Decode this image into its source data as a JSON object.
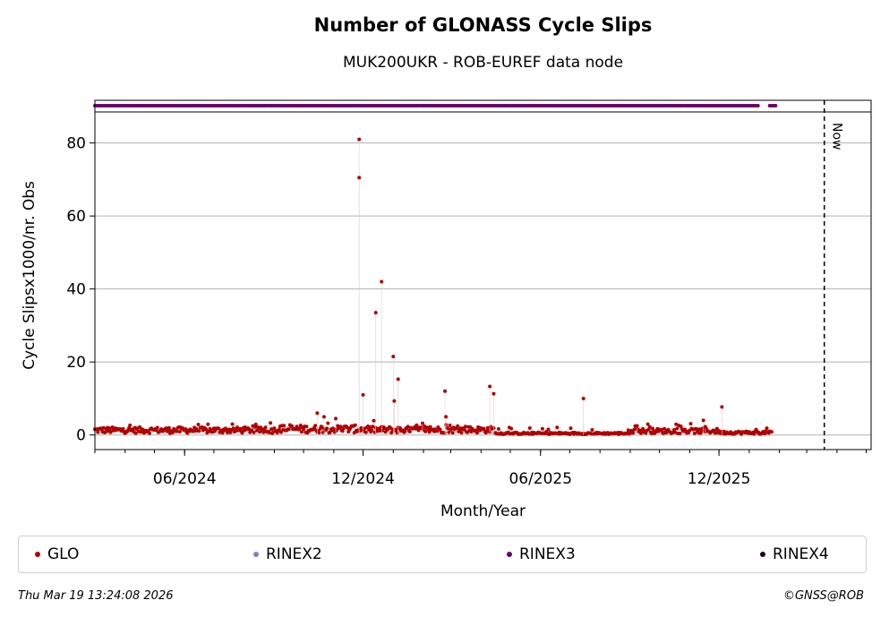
{
  "chart_data": {
    "type": "scatter",
    "title": "Number of GLONASS Cycle Slips",
    "subtitle": "MUK200UKR - ROB-EUREF data node",
    "xlabel": "Month/Year",
    "ylabel": "Cycle Slipsx1000/nr. Obs",
    "x_range": [
      "2024-03-01",
      "2026-05-06"
    ],
    "ylim": [
      -4,
      88.5
    ],
    "x_ticks": [
      {
        "date": "2024-06-01",
        "label": "06/2024"
      },
      {
        "date": "2024-12-01",
        "label": "12/2024"
      },
      {
        "date": "2025-06-01",
        "label": "06/2025"
      },
      {
        "date": "2025-12-01",
        "label": "12/2025"
      }
    ],
    "y_ticks": [
      0,
      20,
      40,
      60,
      80
    ],
    "grid": "horizontal",
    "now_marker": {
      "date": "2026-03-19",
      "label": "Now"
    },
    "legend": {
      "position": "bottom",
      "items": [
        {
          "label": "GLO",
          "color": "#b30000"
        },
        {
          "label": "RINEX2",
          "color": "#8080c0"
        },
        {
          "label": "RINEX3",
          "color": "#660066"
        },
        {
          "label": "RINEX4",
          "color": "#1a001a"
        }
      ]
    },
    "series": [
      {
        "name": "GLO",
        "color": "#b30000",
        "baseline": {
          "start": "2024-03-01",
          "end": "2026-01-24",
          "segments": [
            {
              "end": "2024-09-01",
              "level": 1.2
            },
            {
              "end": "2024-12-01",
              "level": 1.5
            },
            {
              "end": "2025-04-15",
              "level": 1.3
            },
            {
              "end": "2025-09-01",
              "level": 0.4
            },
            {
              "end": "2025-12-01",
              "level": 1.0
            },
            {
              "end": "2026-01-24",
              "level": 0.6
            }
          ]
        },
        "points": [
          {
            "x": "2024-11-27",
            "y": 81
          },
          {
            "x": "2024-11-27",
            "y": 70.5
          },
          {
            "x": "2024-12-01",
            "y": 11
          },
          {
            "x": "2024-12-14",
            "y": 33.5
          },
          {
            "x": "2024-12-20",
            "y": 42
          },
          {
            "x": "2025-01-01",
            "y": 21.5
          },
          {
            "x": "2025-01-02",
            "y": 9.3
          },
          {
            "x": "2025-01-06",
            "y": 15.3
          },
          {
            "x": "2025-01-31",
            "y": 3.2
          },
          {
            "x": "2025-02-23",
            "y": 12
          },
          {
            "x": "2025-02-24",
            "y": 5
          },
          {
            "x": "2025-04-10",
            "y": 13.3
          },
          {
            "x": "2025-04-14",
            "y": 11.3
          },
          {
            "x": "2025-07-15",
            "y": 10
          },
          {
            "x": "2024-10-15",
            "y": 6
          },
          {
            "x": "2024-10-22",
            "y": 5
          },
          {
            "x": "2024-11-03",
            "y": 4.5
          },
          {
            "x": "2025-09-08",
            "y": 2.5
          },
          {
            "x": "2025-11-15",
            "y": 4
          },
          {
            "x": "2025-11-17",
            "y": 2.3
          },
          {
            "x": "2025-12-04",
            "y": 7.7
          }
        ]
      },
      {
        "name": "RINEX3",
        "color": "#660066",
        "y": 87,
        "x_range": [
          "2024-03-01",
          "2026-01-28"
        ]
      }
    ]
  },
  "footer": {
    "timestamp": "Thu Mar 19 13:24:08 2026",
    "credit": "©GNSS@ROB"
  }
}
